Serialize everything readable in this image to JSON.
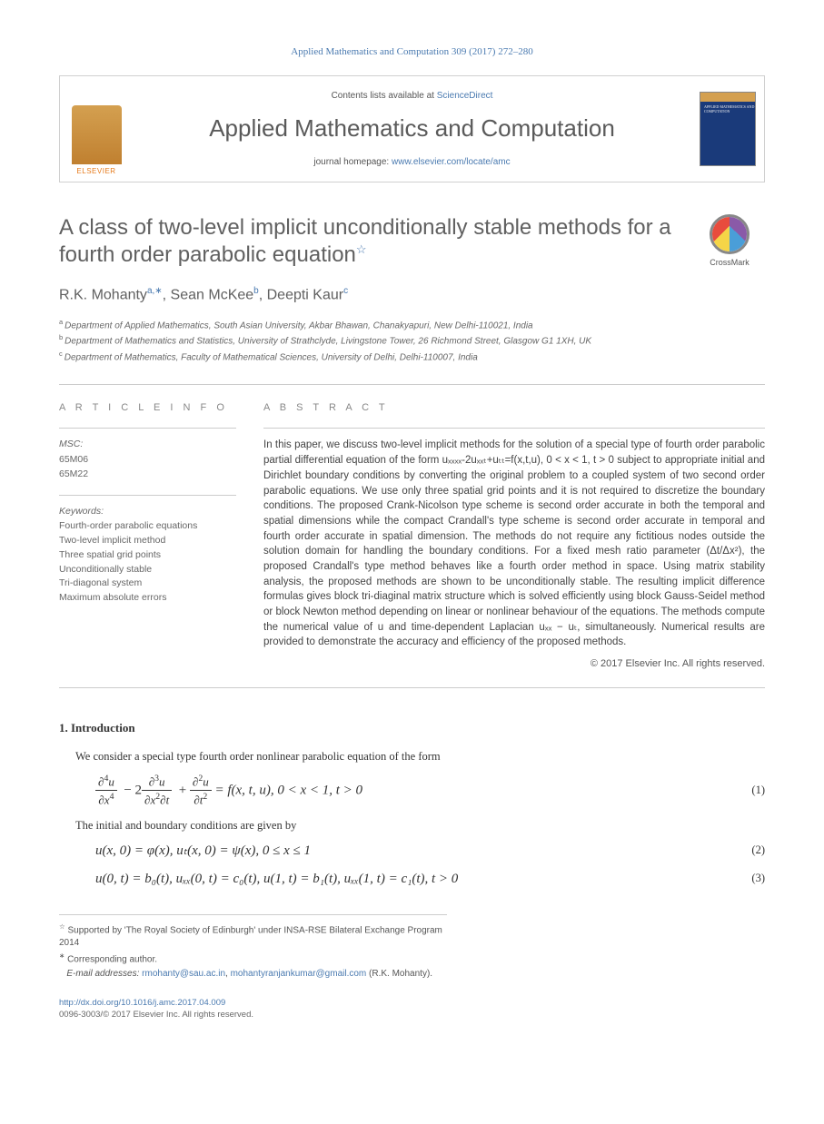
{
  "header": {
    "citation": "Applied Mathematics and Computation 309 (2017) 272–280"
  },
  "banner": {
    "contents_prefix": "Contents lists available at ",
    "contents_link": "ScienceDirect",
    "journal": "Applied Mathematics and Computation",
    "homepage_prefix": "journal homepage: ",
    "homepage_link": "www.elsevier.com/locate/amc",
    "publisher_label": "ELSEVIER",
    "cover_label": "APPLIED MATHEMATICS AND COMPUTATION"
  },
  "crossmark": {
    "label": "CrossMark"
  },
  "title": {
    "main": "A class of two-level implicit unconditionally stable methods for a fourth order parabolic equation",
    "note_marker": "☆"
  },
  "authors": {
    "list": "R.K. Mohanty",
    "a1_sup": "a,∗",
    "sep1": ", Sean McKee",
    "a2_sup": "b",
    "sep2": ", Deepti Kaur",
    "a3_sup": "c"
  },
  "affiliations": {
    "a": "Department of Applied Mathematics, South Asian University, Akbar Bhawan, Chanakyapuri, New Delhi-110021, India",
    "b": "Department of Mathematics and Statistics, University of Strathclyde, Livingstone Tower, 26 Richmond Street, Glasgow G1 1XH, UK",
    "c": "Department of Mathematics, Faculty of Mathematical Sciences, University of Delhi, Delhi-110007, India"
  },
  "article_info": {
    "heading": "A R T I C L E   I N F O",
    "msc_label": "MSC:",
    "msc": [
      "65M06",
      "65M22"
    ],
    "keywords_label": "Keywords:",
    "keywords": [
      "Fourth-order parabolic equations",
      "Two-level implicit method",
      "Three spatial grid points",
      "Unconditionally stable",
      "Tri-diagonal system",
      "Maximum absolute errors"
    ]
  },
  "abstract": {
    "heading": "A B S T R A C T",
    "text": "In this paper, we discuss two-level implicit methods for the solution of a special type of fourth order parabolic partial differential equation of the form uₓₓₓₓ-2uₓₓₜ+uₜₜ=f(x,t,u), 0 < x < 1, t > 0 subject to appropriate initial and Dirichlet boundary conditions by converting the original problem to a coupled system of two second order parabolic equations. We use only three spatial grid points and it is not required to discretize the boundary conditions. The proposed Crank-Nicolson type scheme is second order accurate in both the temporal and spatial dimensions while the compact Crandall's type scheme is second order accurate in temporal and fourth order accurate in spatial dimension. The methods do not require any fictitious nodes outside the solution domain for handling the boundary conditions. For a fixed mesh ratio parameter (Δt/Δx²), the proposed Crandall's type method behaves like a fourth order method in space. Using matrix stability analysis, the proposed methods are shown to be unconditionally stable. The resulting implicit difference formulas gives block tri-diaginal matrix structure which is solved efficiently using block Gauss-Seidel method or block Newton method depending on linear or nonlinear behaviour of the equations. The methods compute the numerical value of u and time-dependent Laplacian uₓₓ − uₜ, simultaneously. Numerical results are provided to demonstrate the accuracy and efficiency of the proposed methods.",
    "copyright": "© 2017 Elsevier Inc. All rights reserved."
  },
  "body": {
    "sec1_title": "1. Introduction",
    "p1": "We consider a special type fourth order nonlinear parabolic equation of the form",
    "eq1_tail": " = f(x, t, u),  0 < x < 1, t > 0",
    "eq1_num": "(1)",
    "p2": "The initial and boundary conditions are given by",
    "eq2": "u(x, 0) = φ(x),    uₜ(x, 0) = ψ(x),   0 ≤ x ≤ 1",
    "eq2_num": "(2)",
    "eq3": "u(0, t) = b₀(t),    uₓₓ(0, t) = c₀(t),    u(1, t) = b₁(t),    uₓₓ(1, t) = c₁(t),    t > 0",
    "eq3_num": "(3)"
  },
  "footnotes": {
    "support": "Supported by 'The Royal Society of Edinburgh' under INSA-RSE Bilateral Exchange Program 2014",
    "corr": "Corresponding author.",
    "email_label": "E-mail addresses: ",
    "email1": "rmohanty@sau.ac.in",
    "email2": "mohantyranjankumar@gmail.com",
    "email_tail": " (R.K. Mohanty)."
  },
  "footer": {
    "doi": "http://dx.doi.org/10.1016/j.amc.2017.04.009",
    "rights": "0096-3003/© 2017 Elsevier Inc. All rights reserved."
  },
  "colors": {
    "link": "#4a7ab0",
    "heading_grey": "#606060",
    "text_grey": "#444444",
    "rule": "#cccccc"
  }
}
